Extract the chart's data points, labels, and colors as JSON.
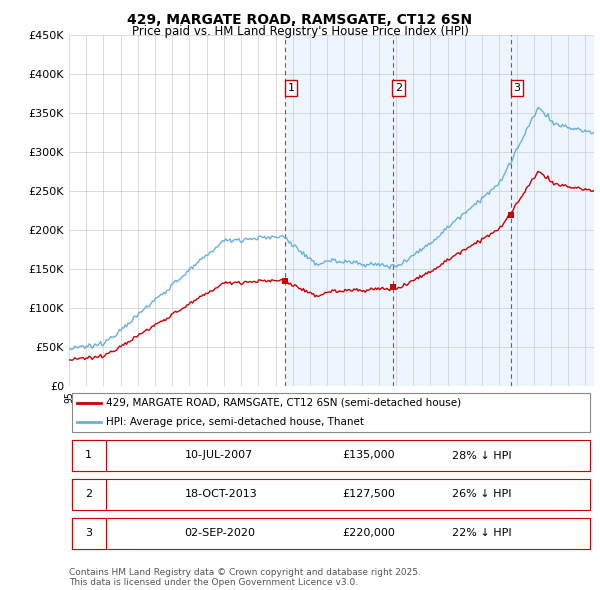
{
  "title": "429, MARGATE ROAD, RAMSGATE, CT12 6SN",
  "subtitle": "Price paid vs. HM Land Registry's House Price Index (HPI)",
  "ylim": [
    0,
    450000
  ],
  "hpi_color": "#6ab0d8",
  "price_color": "#cc0000",
  "chart_bg": "#ffffff",
  "shade_color": "#ddeeff",
  "grid_color": "#cccccc",
  "sale_dates": [
    2007.55,
    2013.8,
    2020.67
  ],
  "sale_prices": [
    135000,
    127500,
    220000
  ],
  "sale_labels": [
    "1",
    "2",
    "3"
  ],
  "legend_line1": "429, MARGATE ROAD, RAMSGATE, CT12 6SN (semi-detached house)",
  "legend_line2": "HPI: Average price, semi-detached house, Thanet",
  "table_rows": [
    [
      "1",
      "10-JUL-2007",
      "£135,000",
      "28% ↓ HPI"
    ],
    [
      "2",
      "18-OCT-2013",
      "£127,500",
      "26% ↓ HPI"
    ],
    [
      "3",
      "02-SEP-2020",
      "£220,000",
      "22% ↓ HPI"
    ]
  ],
  "footnote": "Contains HM Land Registry data © Crown copyright and database right 2025.\nThis data is licensed under the Open Government Licence v3.0.",
  "xmin": 1995,
  "xmax": 2025.5
}
